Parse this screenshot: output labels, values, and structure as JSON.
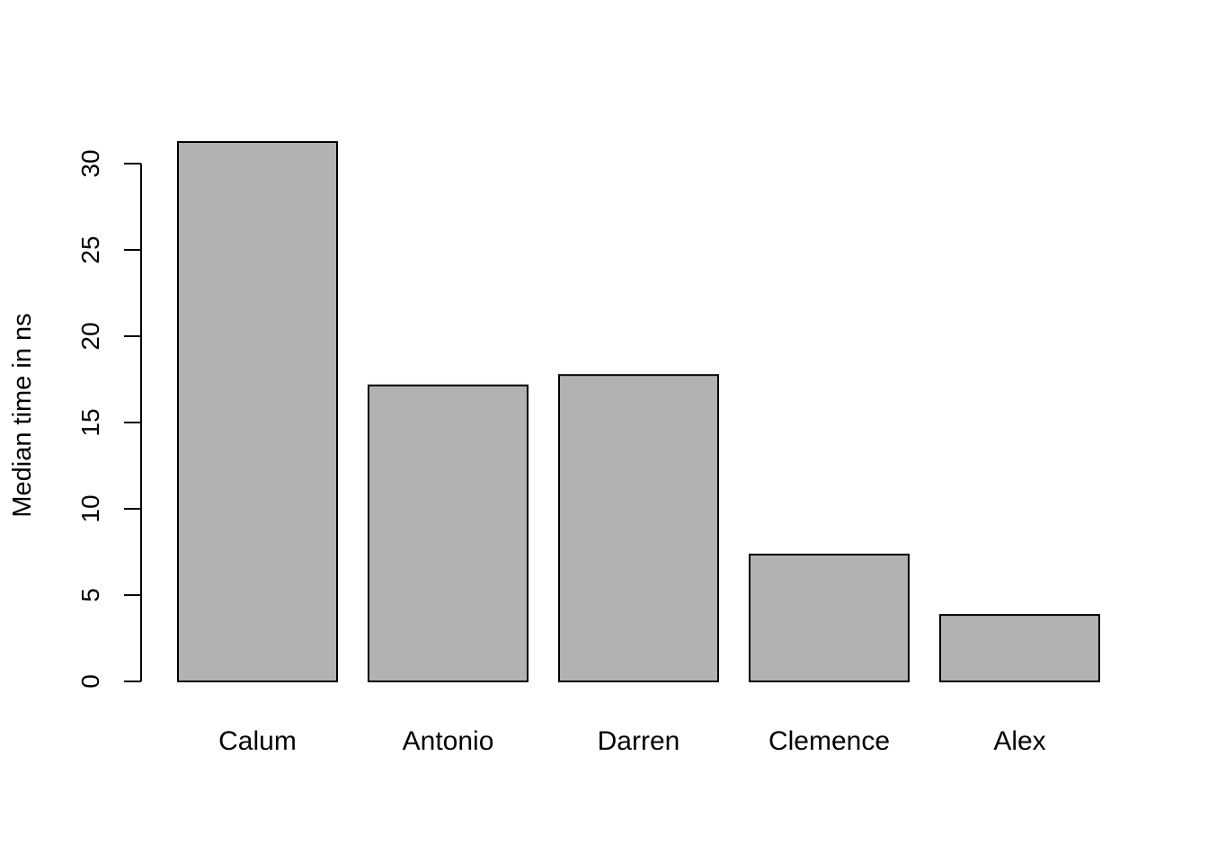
{
  "chart_data": {
    "type": "bar",
    "categories": [
      "Calum",
      "Antonio",
      "Darren",
      "Clemence",
      "Alex"
    ],
    "values": [
      31.25,
      17.15,
      17.75,
      7.35,
      3.85
    ],
    "title": "",
    "xlabel": "",
    "ylabel": "Median time in ns",
    "ylim": [
      0,
      30
    ],
    "yticks": [
      "0",
      "5",
      "10",
      "15",
      "20",
      "25",
      "30"
    ],
    "grid": false,
    "legend": "none",
    "bar_color": "#b2b2b2",
    "border_color": "#000000"
  }
}
